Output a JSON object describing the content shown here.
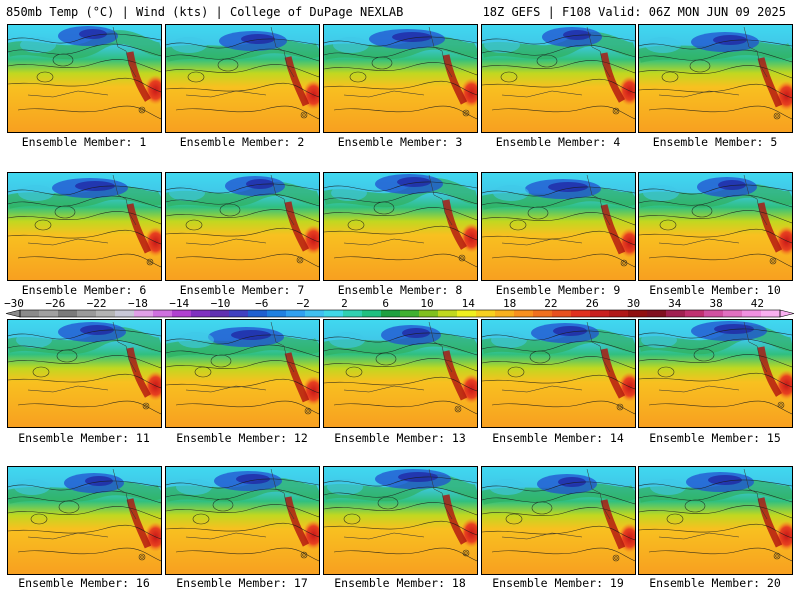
{
  "header": {
    "left": "850mb Temp (°C) | Wind (kts) | College of DuPage NEXLAB",
    "right": "18Z GEFS | F108 Valid: 06Z MON JUN 09 2025"
  },
  "members": [
    {
      "caption": "Ensemble Member: 1"
    },
    {
      "caption": "Ensemble Member: 2"
    },
    {
      "caption": "Ensemble Member: 3"
    },
    {
      "caption": "Ensemble Member: 4"
    },
    {
      "caption": "Ensemble Member: 5"
    },
    {
      "caption": "Ensemble Member: 6"
    },
    {
      "caption": "Ensemble Member: 7"
    },
    {
      "caption": "Ensemble Member: 8"
    },
    {
      "caption": "Ensemble Member: 9"
    },
    {
      "caption": "Ensemble Member: 10"
    },
    {
      "caption": "Ensemble Member: 11"
    },
    {
      "caption": "Ensemble Member: 12"
    },
    {
      "caption": "Ensemble Member: 13"
    },
    {
      "caption": "Ensemble Member: 14"
    },
    {
      "caption": "Ensemble Member: 15"
    },
    {
      "caption": "Ensemble Member: 16"
    },
    {
      "caption": "Ensemble Member: 17"
    },
    {
      "caption": "Ensemble Member: 18"
    },
    {
      "caption": "Ensemble Member: 19"
    },
    {
      "caption": "Ensemble Member: 20"
    }
  ],
  "colorbar": {
    "labels": [
      "−30",
      "−26",
      "−22",
      "−18",
      "−14",
      "−10",
      "−6",
      "−2",
      "2",
      "6",
      "10",
      "14",
      "18",
      "22",
      "26",
      "30",
      "34",
      "38",
      "42"
    ],
    "colors": [
      "#8a8a8a",
      "#a0a0a0",
      "#7a7a7a",
      "#9a9a9a",
      "#b4b4b4",
      "#c8c8d8",
      "#e0a0e8",
      "#d070e0",
      "#b040d0",
      "#8030c0",
      "#6030b0",
      "#4040c0",
      "#2060d0",
      "#2080e0",
      "#30a0f0",
      "#40c0f0",
      "#40d8e8",
      "#30d0b0",
      "#20c080",
      "#20a040",
      "#40b030",
      "#80c020",
      "#c0d820",
      "#f0f020",
      "#f8d020",
      "#f8b020",
      "#f89020",
      "#f07020",
      "#e85020",
      "#e03020",
      "#c82020",
      "#b01818",
      "#901010",
      "#801020",
      "#a02050",
      "#c03070",
      "#d050a0",
      "#e070c0",
      "#f090e0",
      "#f8b0f0"
    ]
  }
}
